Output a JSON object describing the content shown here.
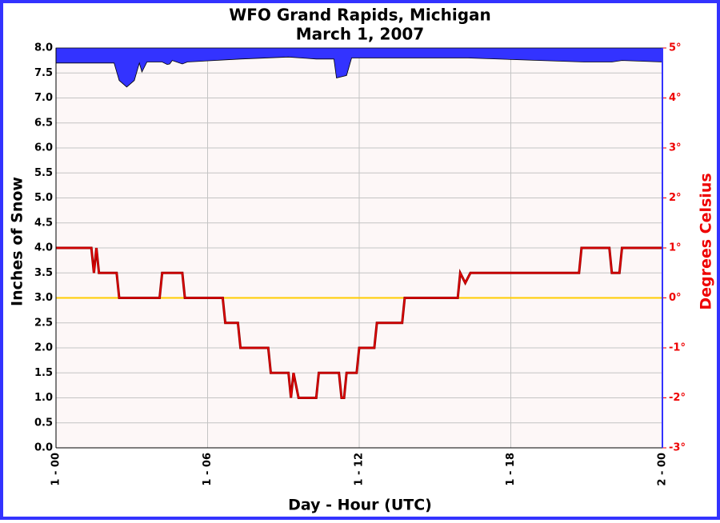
{
  "chart_data": {
    "type": "line",
    "title": "WFO Grand Rapids, Michigan",
    "subtitle": "March 1, 2007",
    "x_label": "Day - Hour (UTC)",
    "y_label": "Inches of Snow",
    "y2_label": "Degrees Celsius",
    "xlim": [
      0,
      24
    ],
    "xticks": [
      {
        "value": 0,
        "label": "1 - 00"
      },
      {
        "value": 6,
        "label": "1 - 06"
      },
      {
        "value": 12,
        "label": "1 - 12"
      },
      {
        "value": 18,
        "label": "1 - 18"
      },
      {
        "value": 24,
        "label": "2 - 00"
      }
    ],
    "ylim": [
      0,
      8
    ],
    "yticks": [
      {
        "value": 0,
        "label": "0.0"
      },
      0.5,
      {
        "value": 1,
        "label": "1.0"
      },
      1.5,
      {
        "value": 2,
        "label": "2.0"
      },
      2.5,
      {
        "value": 3,
        "label": "3.0"
      },
      3.5,
      {
        "value": 4,
        "label": "4.0"
      },
      4.5,
      {
        "value": 5,
        "label": "5.0"
      },
      5.5,
      {
        "value": 6,
        "label": "6.0"
      },
      6.5,
      {
        "value": 7,
        "label": "7.0"
      },
      7.5,
      {
        "value": 8,
        "label": "8.0"
      }
    ],
    "y2lim": [
      -3,
      5
    ],
    "y2ticks": [
      {
        "value": -3,
        "label": "-3°"
      },
      {
        "value": -2,
        "label": "-2°"
      },
      {
        "value": -1,
        "label": "-1°"
      },
      {
        "value": 0,
        "label": "0°"
      },
      {
        "value": 1,
        "label": "1°"
      },
      {
        "value": 2,
        "label": "2°"
      },
      {
        "value": 3,
        "label": "3°"
      },
      {
        "value": 4,
        "label": "4°"
      },
      {
        "value": 5,
        "label": "5°"
      }
    ],
    "grid": true,
    "zero_line": {
      "value": 0,
      "axis": "y2",
      "color": "#ffcc00"
    },
    "series": [
      {
        "color": "#3333ff",
        "fill": "above",
        "x": [
          0,
          2.3,
          2.5,
          2.8,
          3.1,
          3.3,
          3.4,
          3.6,
          4.2,
          4.4,
          4.5,
          4.6,
          5.0,
          5.2,
          7.3,
          9.2,
          10.3,
          11.0,
          11.1,
          11.5,
          11.7,
          16.3,
          20.9,
          22.0,
          22.4,
          24
        ],
        "values": [
          7.7,
          7.7,
          7.35,
          7.22,
          7.35,
          7.7,
          7.52,
          7.72,
          7.72,
          7.67,
          7.68,
          7.75,
          7.68,
          7.72,
          7.78,
          7.82,
          7.78,
          7.78,
          7.4,
          7.45,
          7.8,
          7.8,
          7.72,
          7.72,
          7.75,
          7.72
        ]
      },
      {
        "color": "#ee0000",
        "axis": "y2",
        "x": [
          0,
          1.4,
          1.5,
          1.6,
          1.7,
          2.4,
          2.5,
          4.1,
          4.2,
          5.0,
          5.1,
          6.6,
          6.7,
          7.2,
          7.3,
          8.4,
          8.5,
          9.2,
          9.3,
          9.4,
          9.6,
          10.3,
          10.4,
          11.2,
          11.3,
          11.4,
          11.5,
          11.9,
          12.0,
          12.6,
          12.7,
          13.7,
          13.8,
          15.9,
          16.0,
          16.2,
          16.4,
          20.7,
          20.8,
          21.9,
          22.0,
          22.3,
          22.4,
          24
        ],
        "values": [
          1,
          1,
          0.5,
          1,
          0.5,
          0.5,
          0,
          0,
          0.5,
          0.5,
          0,
          0,
          -0.5,
          -0.5,
          -1,
          -1,
          -1.5,
          -1.5,
          -2,
          -1.5,
          -2,
          -2,
          -1.5,
          -1.5,
          -2,
          -2,
          -1.5,
          -1.5,
          -1,
          -1,
          -0.5,
          -0.5,
          0,
          0,
          0.5,
          0.3,
          0.5,
          0.5,
          1,
          1,
          0.5,
          0.5,
          1,
          1
        ]
      }
    ]
  }
}
